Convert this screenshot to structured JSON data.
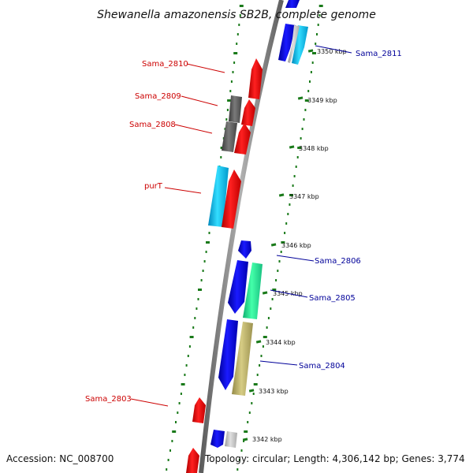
{
  "title": "Shewanella amazonensis SB2B, complete genome",
  "footer": {
    "accession": "Accession: NC_008700",
    "topology": "Topology: circular; Length: 4,306,142 bp; Genes: 3,774"
  },
  "tick_labels": [
    "3350 kbp",
    "3349 kbp",
    "3348 kbp",
    "3347 kbp",
    "3346 kbp",
    "3345 kbp",
    "3344 kbp",
    "3343 kbp",
    "3342 kbp"
  ],
  "gene_labels": {
    "left": [
      "Sama_2810",
      "Sama_2809",
      "Sama_2808",
      "purT",
      "Sama_2803"
    ],
    "right": [
      "Sama_2811",
      "Sama_2806",
      "Sama_2805",
      "Sama_2804"
    ]
  },
  "colors": {
    "reverse_label": "#cc0000",
    "forward_label": "#000099",
    "feature_red": "#ff0000",
    "feature_blue": "#0000ee",
    "feature_cyan": "#00bbee",
    "feature_gray": "#666666",
    "feature_green": "#22ee99",
    "feature_khaki": "#bfb46a",
    "dots": "#1a7a1a"
  }
}
